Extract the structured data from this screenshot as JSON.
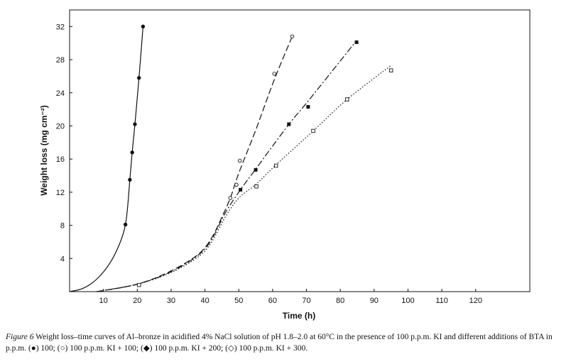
{
  "chart_data": {
    "type": "line",
    "xlabel": "Time (h)",
    "ylabel": "Weight loss (mg cm⁻²)",
    "xlim": [
      0,
      136
    ],
    "ylim": [
      0,
      34
    ],
    "x_ticks": [
      10,
      20,
      30,
      40,
      50,
      60,
      70,
      80,
      90,
      100,
      110,
      120
    ],
    "y_ticks": [
      4,
      8,
      12,
      16,
      20,
      24,
      28,
      32
    ],
    "grid": false,
    "series": [
      {
        "name": "100",
        "marker": "filled-circle",
        "dash": "solid",
        "points": [
          [
            16.5,
            8.1
          ],
          [
            17.8,
            13.5
          ],
          [
            18.5,
            16.8
          ],
          [
            19.3,
            20.2
          ],
          [
            20.5,
            25.8
          ],
          [
            21.7,
            32.0
          ]
        ],
        "curve": [
          [
            0,
            0
          ],
          [
            4,
            0.4
          ],
          [
            8,
            1.5
          ],
          [
            12,
            3.5
          ],
          [
            15,
            6.0
          ],
          [
            16.5,
            8.1
          ],
          [
            17.2,
            10.5
          ],
          [
            17.8,
            13.5
          ],
          [
            18.5,
            16.8
          ],
          [
            19.3,
            20.2
          ],
          [
            20.5,
            25.8
          ],
          [
            21.7,
            32.0
          ]
        ]
      },
      {
        "name": "100 p.p.m. KI + 100",
        "marker": "open-circle",
        "dash": "dashed",
        "points": [
          [
            47.5,
            11.3
          ],
          [
            49.3,
            12.9
          ],
          [
            50.3,
            15.8
          ],
          [
            60.5,
            26.3
          ],
          [
            65.8,
            30.8
          ]
        ],
        "curve": [
          [
            8,
            0
          ],
          [
            20,
            0.9
          ],
          [
            30,
            2.5
          ],
          [
            38,
            4.5
          ],
          [
            42,
            6.5
          ],
          [
            45,
            9.0
          ],
          [
            47.5,
            11.3
          ],
          [
            50,
            14.3
          ],
          [
            55,
            19.5
          ],
          [
            60.5,
            25.6
          ],
          [
            65.8,
            30.8
          ]
        ]
      },
      {
        "name": "100 p.p.m. KI + 200",
        "marker": "filled-diamond",
        "dash": "dash-dot",
        "points": [
          [
            50.5,
            12.3
          ],
          [
            55.0,
            14.7
          ],
          [
            64.8,
            20.2
          ],
          [
            70.5,
            22.3
          ],
          [
            84.8,
            30.1
          ]
        ],
        "curve": [
          [
            8,
            0
          ],
          [
            20,
            0.9
          ],
          [
            30,
            2.4
          ],
          [
            38,
            4.4
          ],
          [
            42,
            6.3
          ],
          [
            46,
            9.5
          ],
          [
            50.5,
            12.3
          ],
          [
            55,
            14.8
          ],
          [
            64.8,
            20.2
          ],
          [
            70.5,
            23.0
          ],
          [
            84.8,
            30.3
          ]
        ]
      },
      {
        "name": "100 p.p.m. KI + 300",
        "marker": "open-diamond",
        "dash": "dotted",
        "points": [
          [
            20.5,
            0.8
          ],
          [
            55.2,
            12.7
          ],
          [
            61.0,
            15.2
          ],
          [
            72.0,
            19.4
          ],
          [
            82.0,
            23.2
          ],
          [
            95.0,
            26.7
          ]
        ],
        "curve": [
          [
            8,
            0
          ],
          [
            20,
            0.9
          ],
          [
            30,
            2.3
          ],
          [
            38,
            4.2
          ],
          [
            42,
            6.0
          ],
          [
            46,
            9.0
          ],
          [
            50,
            11.3
          ],
          [
            55.2,
            13.0
          ],
          [
            61,
            15.3
          ],
          [
            72,
            19.4
          ],
          [
            82,
            23.2
          ],
          [
            95,
            27.3
          ]
        ]
      }
    ]
  },
  "caption": {
    "figure_label": "Figure 6",
    "text": " Weight loss–time curves of Al–bronze in acidified 4% NaCl solution of pH 1.8–2.0 at 60°C in the presence of 100 p.p.m. KI and different additions of BTA in p.p.m. (●) 100; (○) 100 p.p.m. KI + 100; (◆) 100 p.p.m. KI + 200; (◇) 100 p.p.m. KI + 300."
  },
  "colors": {
    "ink": "#111111"
  }
}
